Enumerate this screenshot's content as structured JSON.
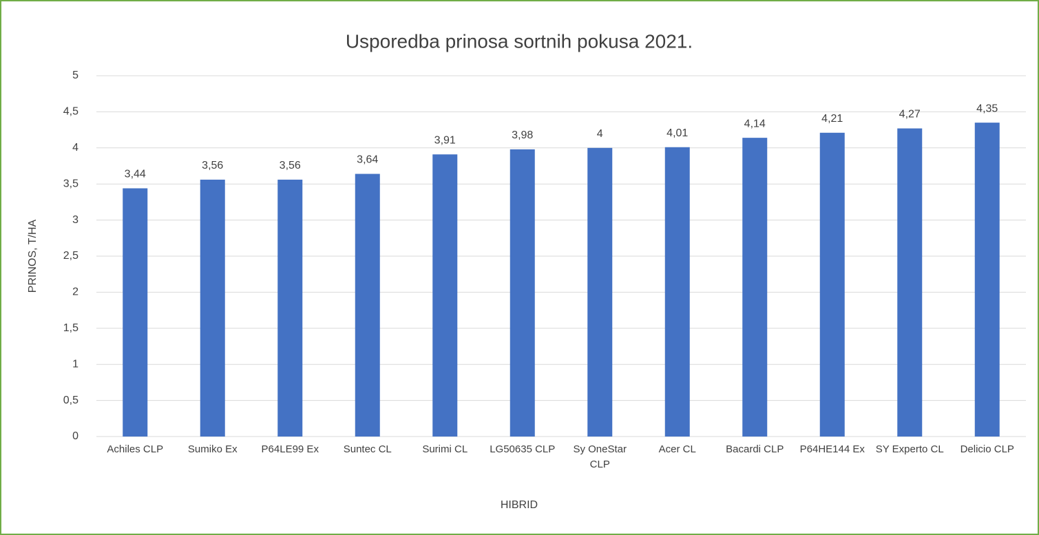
{
  "chart_data": {
    "type": "bar",
    "title": "Usporedba prinosa sortnih pokusa 2021.",
    "x_label": "HIBRID",
    "y_label": "PRINOS, T/HA",
    "categories": [
      "Achiles CLP",
      "Sumiko Ex",
      "P64LE99 Ex",
      "Suntec CL",
      "Surimi CL",
      "LG50635 CLP",
      "Sy OneStar CLP",
      "Acer CL",
      "Bacardi CLP",
      "P64HE144 Ex",
      "SY Experto CL",
      "Delicio CLP"
    ],
    "values": [
      3.44,
      3.56,
      3.56,
      3.64,
      3.91,
      3.98,
      4,
      4.01,
      4.14,
      4.21,
      4.27,
      4.35
    ],
    "value_labels": [
      "3,44",
      "3,56",
      "3,56",
      "3,64",
      "3,91",
      "3,98",
      "4",
      "4,01",
      "4,14",
      "4,21",
      "4,27",
      "4,35"
    ],
    "color": "#4472c4",
    "ylim": [
      0,
      5
    ],
    "yticks": [
      0,
      {
        "value": 0.5,
        "label": "0,5"
      },
      1,
      {
        "value": 1.5,
        "label": "1,5"
      },
      2,
      {
        "value": 2.5,
        "label": "2,5"
      },
      3,
      {
        "value": 3.5,
        "label": "3,5"
      },
      4,
      {
        "value": 4.5,
        "label": "4,5"
      },
      5
    ],
    "grid": true
  }
}
